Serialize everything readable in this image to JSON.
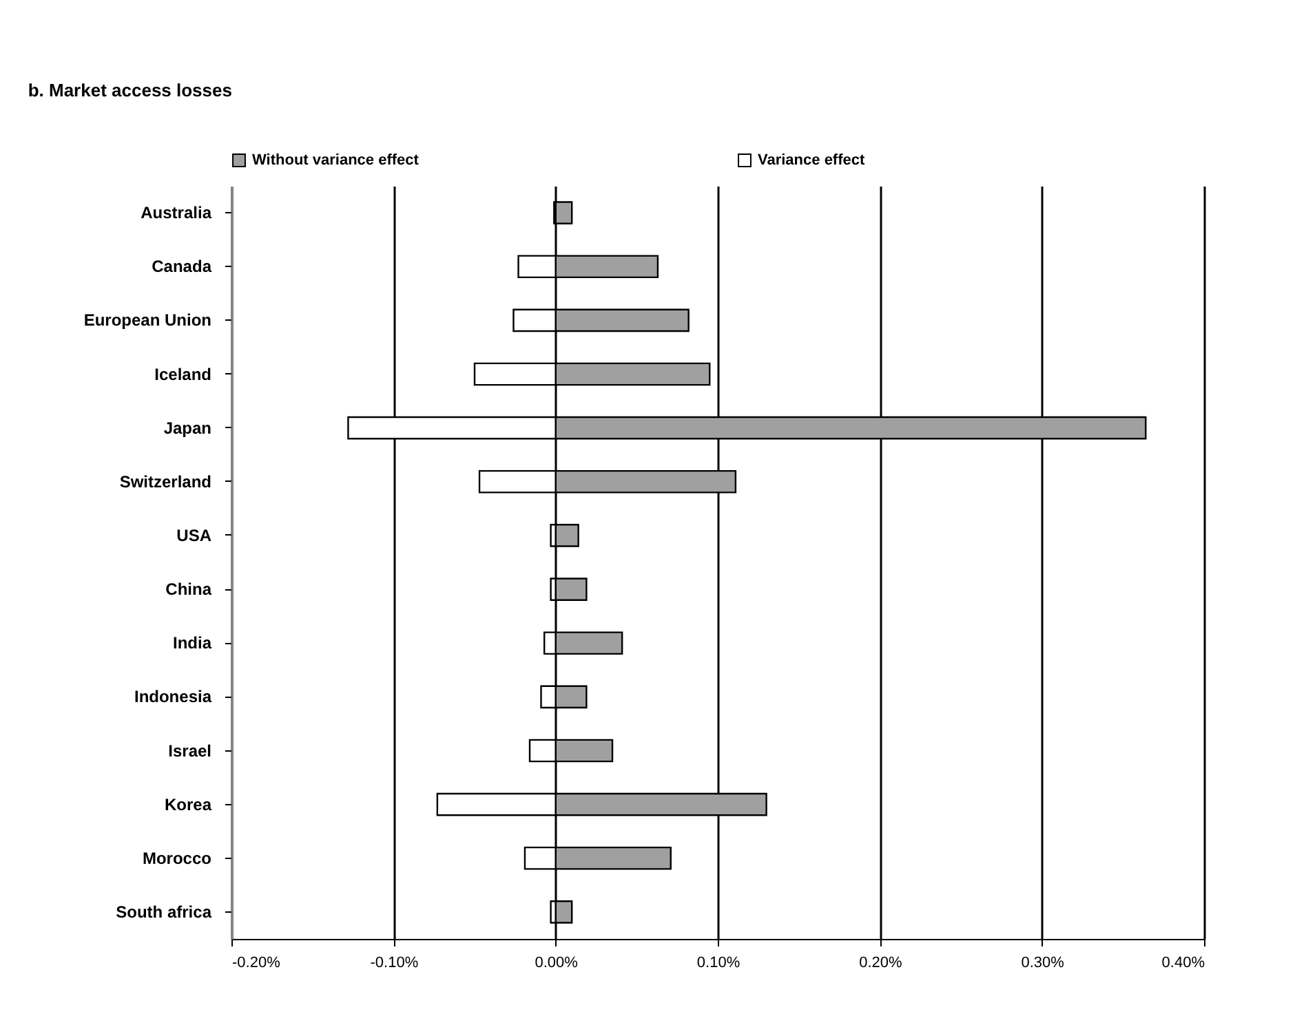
{
  "chart_data": {
    "type": "bar",
    "orientation": "horizontal",
    "stacked": true,
    "title": "b. Market access losses",
    "categories": [
      "Australia",
      "Canada",
      "European Union",
      "Iceland",
      "Japan",
      "Switzerland",
      "USA",
      "China",
      "India",
      "Indonesia",
      "Israel",
      "Korea",
      "Morocco",
      "South africa"
    ],
    "series": [
      {
        "name": "Without variance effect",
        "color": "#a0a0a0",
        "values": [
          0.01,
          0.063,
          0.082,
          0.095,
          0.364,
          0.111,
          0.014,
          0.019,
          0.041,
          0.019,
          0.035,
          0.13,
          0.071,
          0.01
        ]
      },
      {
        "name": "Variance effect",
        "color": "#ffffff",
        "values": [
          -0.001,
          -0.023,
          -0.026,
          -0.05,
          -0.128,
          -0.047,
          -0.003,
          -0.003,
          -0.007,
          -0.009,
          -0.016,
          -0.073,
          -0.019,
          -0.003
        ]
      }
    ],
    "xlim": [
      -0.2,
      0.4
    ],
    "xticks": [
      {
        "value": -0.2,
        "label": "-0.20%"
      },
      {
        "value": -0.1,
        "label": "-0.10%"
      },
      {
        "value": 0,
        "label": "0.00%"
      },
      {
        "value": 0.1,
        "label": "0.10%"
      },
      {
        "value": 0.2,
        "label": "0.20%"
      },
      {
        "value": 0.3,
        "label": "0.30%"
      },
      {
        "value": 0.4,
        "label": "0.40%"
      }
    ],
    "grid": "x",
    "legend": "top"
  }
}
